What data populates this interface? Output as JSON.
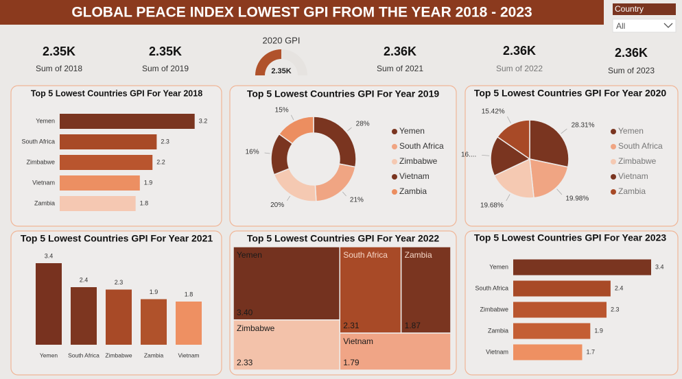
{
  "header": {
    "title": "GLOBAL PEACE INDEX LOWEST GPI FROM THE YEAR 2018 - 2023"
  },
  "slicer": {
    "label": "Country",
    "value": "All"
  },
  "cards": [
    {
      "value": "2.35K",
      "label": "Sum of 2018"
    },
    {
      "value": "2.35K",
      "label": "Sum of 2019"
    },
    {
      "value": "2.36K",
      "label": "Sum of 2021"
    },
    {
      "value": "2.36K",
      "label": "Sum of 2022"
    },
    {
      "value": "2.36K",
      "label": "Sum of 2023"
    }
  ],
  "chart_data": [
    {
      "type": "gauge",
      "title": "2020 GPI",
      "value": 2350,
      "value_label": "2.35K",
      "ylim": [
        0,
        4700
      ],
      "color": "#b0522b",
      "track_color": "#e6e3e0"
    },
    {
      "type": "bar",
      "orientation": "horizontal",
      "title": "Top 5 Lowest Countries GPI For Year 2018",
      "categories": [
        "Yemen",
        "South Africa",
        "Zimbabwe",
        "Vietnam",
        "Zambia"
      ],
      "values": [
        3.2,
        2.3,
        2.2,
        1.9,
        1.8
      ],
      "colors": [
        "#7a3520",
        "#a84a27",
        "#b9552e",
        "#ec8f62",
        "#f5c8b2"
      ],
      "xlim": [
        0,
        3.4
      ]
    },
    {
      "type": "donut",
      "title": "Top 5 Lowest Countries GPI For Year 2019",
      "categories": [
        "Yemen",
        "South Africa",
        "Zimbabwe",
        "Vietnam",
        "Zambia"
      ],
      "values": [
        28,
        21,
        20,
        16,
        15
      ],
      "value_labels": [
        "28%",
        "21%",
        "20%",
        "16%",
        "15%"
      ],
      "colors": [
        "#7a3520",
        "#f0a583",
        "#f5c9b2",
        "#7a3520",
        "#ec8e60"
      ],
      "legend": "right"
    },
    {
      "type": "pie",
      "title": "Top 5 Lowest Countries GPI For Year 2020",
      "categories": [
        "Yemen",
        "South Africa",
        "Zimbabwe",
        "Vietnam",
        "Zambia"
      ],
      "values": [
        28.31,
        19.98,
        19.68,
        16.61,
        15.42
      ],
      "value_labels": [
        "28.31%",
        "19.98%",
        "19.68%",
        "16....",
        "15.42%"
      ],
      "colors": [
        "#7a3520",
        "#f0a583",
        "#f5c9b2",
        "#7a3520",
        "#a84a27"
      ],
      "legend": "right"
    },
    {
      "type": "column",
      "title": "Top 5 Lowest Countries GPI For Year 2021",
      "categories": [
        "Yemen",
        "South Africa",
        "Zimbabwe",
        "Zambia",
        "Vietnam"
      ],
      "values": [
        3.4,
        2.4,
        2.3,
        1.9,
        1.8
      ],
      "colors": [
        "#78321f",
        "#7d3620",
        "#a84a27",
        "#b0522b",
        "#ee9062"
      ],
      "ylim": [
        0,
        3.4
      ]
    },
    {
      "type": "treemap",
      "title": "Top 5 Lowest Countries GPI For Year 2022",
      "categories": [
        "Yemen",
        "South Africa",
        "Zambia",
        "Zimbabwe",
        "Vietnam"
      ],
      "values": [
        3.4,
        2.31,
        1.87,
        2.33,
        1.79
      ],
      "value_labels": [
        "3.40",
        "2.31",
        "1.87",
        "2.33",
        "1.79"
      ],
      "colors": [
        "#74321f",
        "#a84a27",
        "#7a3520",
        "#f3c2aa",
        "#f0a586"
      ]
    },
    {
      "type": "bar",
      "orientation": "horizontal",
      "title": "Top 5 Lowest Countries GPI For Year 2023",
      "categories": [
        "Yemen",
        "South Africa",
        "Zimbabwe",
        "Zambia",
        "Vietnam"
      ],
      "values": [
        3.4,
        2.4,
        2.3,
        1.9,
        1.7
      ],
      "colors": [
        "#7a3520",
        "#a84a27",
        "#b9552e",
        "#c45e34",
        "#ee9062"
      ],
      "xlim": [
        0,
        3.4
      ]
    }
  ]
}
